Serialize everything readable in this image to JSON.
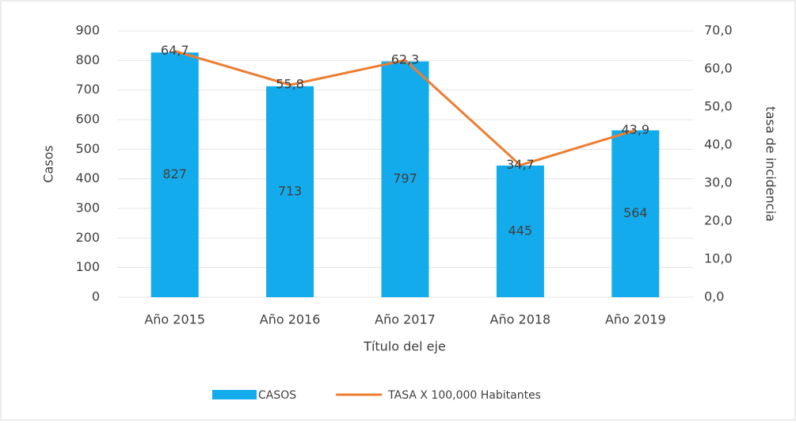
{
  "chart_data": {
    "type": "bar_line",
    "categories": [
      "Año 2015",
      "Año 2016",
      "Año 2017",
      "Año 2018",
      "Año 2019"
    ],
    "series": [
      {
        "name": "CASOS",
        "type": "bar",
        "color": "#14abec",
        "values": [
          827,
          713,
          797,
          445,
          564
        ]
      },
      {
        "name": "TASA X 100,000 Habitantes",
        "type": "line",
        "axis": "y2",
        "color": "#ed7d31",
        "values": [
          64.7,
          55.8,
          62.3,
          34.7,
          43.9
        ],
        "value_labels": [
          "64,7",
          "55,8",
          "62,3",
          "34,7",
          "43,9"
        ]
      }
    ],
    "x_label": "Título del eje",
    "y_label": "Casos",
    "y2_label": "tasa de incidencia",
    "ylim": [
      0,
      900
    ],
    "yticks": [
      0,
      100,
      200,
      300,
      400,
      500,
      600,
      700,
      800,
      900
    ],
    "y2lim": [
      0,
      70
    ],
    "y2ticks": [
      {
        "value": 0,
        "label": "0,0"
      },
      {
        "value": 10,
        "label": "10,0"
      },
      {
        "value": 20,
        "label": "20,0"
      },
      {
        "value": 30,
        "label": "30,0"
      },
      {
        "value": 40,
        "label": "40,0"
      },
      {
        "value": 50,
        "label": "50,0"
      },
      {
        "value": 60,
        "label": "60,0"
      },
      {
        "value": 70,
        "label": "70,0"
      }
    ],
    "grid": true,
    "legend": "bottom"
  }
}
